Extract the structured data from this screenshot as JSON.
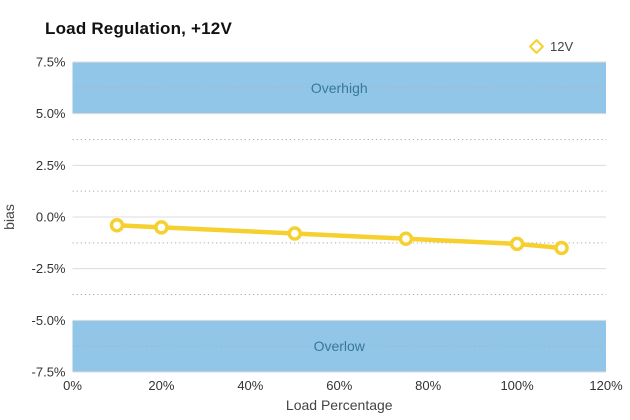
{
  "chart_data": {
    "type": "line",
    "title": "Load Regulation, +12V",
    "xlabel": "Load Percentage",
    "ylabel": "bias",
    "xlim": [
      0,
      120
    ],
    "ylim": [
      -7.5,
      7.5
    ],
    "x_ticks": [
      0,
      20,
      40,
      60,
      80,
      100,
      120
    ],
    "x_tick_labels": [
      "0%",
      "20%",
      "40%",
      "60%",
      "80%",
      "100%",
      "120%"
    ],
    "y_ticks": [
      7.5,
      5.0,
      2.5,
      0.0,
      -2.5,
      -5.0,
      -7.5
    ],
    "y_tick_labels": [
      "7.5%",
      "5.0%",
      "2.5%",
      "0.0%",
      "-2.5%",
      "-5.0%",
      "-7.5%"
    ],
    "y_minor_ticks": [
      6.25,
      3.75,
      1.25,
      -1.25,
      -3.75,
      -6.25
    ],
    "grid": {
      "major": "solid",
      "minor": "dotted"
    },
    "legend_position": "top-right",
    "series": [
      {
        "name": "12V",
        "x": [
          10,
          20,
          50,
          75,
          100,
          110
        ],
        "y": [
          -0.4,
          -0.5,
          -0.8,
          -1.05,
          -1.3,
          -1.5
        ],
        "color": "#F5D02F",
        "marker": "hollow-circle"
      }
    ],
    "bands": [
      {
        "label": "Overhigh",
        "from": 5.0,
        "to": 7.5
      },
      {
        "label": "Overlow",
        "from": -7.5,
        "to": -5.0
      }
    ],
    "colors": {
      "band_fill": "#92C6E8",
      "band_text": "#35799F",
      "grid_major": "#DCDCDC",
      "grid_minor": "#B0B0B0",
      "tick_text": "#333333",
      "axis_title_text": "#444444",
      "title_text": "#111111",
      "legend_text": "#444444",
      "background": "#FFFFFF"
    }
  }
}
